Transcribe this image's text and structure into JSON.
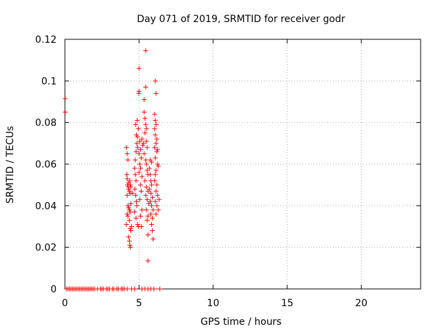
{
  "chart_data": {
    "type": "scatter",
    "title": "Day 071 of 2019, SRMTID for receiver godr",
    "xlabel": "GPS time / hours",
    "ylabel": "SRMTID / TECUs",
    "xlim": [
      0,
      24
    ],
    "ylim": [
      0,
      0.12
    ],
    "xticks": [
      0,
      5,
      10,
      15,
      20
    ],
    "xtick_labels": [
      "0",
      "5",
      "10",
      "15",
      "20"
    ],
    "yticks": [
      0,
      0.02,
      0.04,
      0.06,
      0.08,
      0.1,
      0.12
    ],
    "ytick_labels": [
      "0",
      "0.02",
      "0.04",
      "0.06",
      "0.08",
      "0.1",
      "0.12"
    ],
    "grid": true,
    "marker": "plus",
    "color": "#ff0000",
    "series": [
      {
        "points": [
          [
            0.02,
            0.0915
          ],
          [
            0.02,
            0.085
          ],
          [
            0.1,
            0
          ],
          [
            0.2,
            0
          ],
          [
            0.3,
            0
          ],
          [
            0.4,
            0
          ],
          [
            0.5,
            0
          ],
          [
            0.6,
            0
          ],
          [
            0.7,
            0
          ],
          [
            0.8,
            0
          ],
          [
            0.9,
            0
          ],
          [
            1.0,
            0
          ],
          [
            1.1,
            0
          ],
          [
            1.2,
            0
          ],
          [
            1.3,
            0
          ],
          [
            1.4,
            0
          ],
          [
            1.5,
            0
          ],
          [
            1.6,
            0
          ],
          [
            1.7,
            0
          ],
          [
            1.8,
            0
          ],
          [
            1.9,
            0
          ],
          [
            2.0,
            0
          ],
          [
            2.2,
            0
          ],
          [
            2.4,
            0
          ],
          [
            2.5,
            0
          ],
          [
            2.6,
            0
          ],
          [
            2.8,
            0
          ],
          [
            2.9,
            0
          ],
          [
            3.0,
            0
          ],
          [
            3.2,
            0
          ],
          [
            3.3,
            0
          ],
          [
            3.5,
            0
          ],
          [
            3.6,
            0
          ],
          [
            3.8,
            0
          ],
          [
            3.9,
            0
          ],
          [
            4.0,
            0
          ],
          [
            4.2,
            0
          ],
          [
            4.5,
            0
          ],
          [
            4.7,
            0
          ],
          [
            5.2,
            0
          ],
          [
            5.4,
            0
          ],
          [
            5.6,
            0
          ],
          [
            5.8,
            0
          ],
          [
            6.0,
            0
          ],
          [
            6.4,
            0
          ],
          [
            4.15,
            0.068
          ],
          [
            4.2,
            0.065
          ],
          [
            4.25,
            0.062
          ],
          [
            4.18,
            0.055
          ],
          [
            4.2,
            0.053
          ],
          [
            4.22,
            0.05
          ],
          [
            4.28,
            0.049
          ],
          [
            4.3,
            0.048
          ],
          [
            4.35,
            0.047
          ],
          [
            4.4,
            0.046
          ],
          [
            4.3,
            0.051
          ],
          [
            4.38,
            0.052
          ],
          [
            4.4,
            0.05
          ],
          [
            4.45,
            0.049
          ],
          [
            4.2,
            0.045
          ],
          [
            4.25,
            0.04
          ],
          [
            4.3,
            0.039
          ],
          [
            4.35,
            0.038
          ],
          [
            4.4,
            0.037
          ],
          [
            4.45,
            0.041
          ],
          [
            4.2,
            0.036
          ],
          [
            4.25,
            0.035
          ],
          [
            4.35,
            0.033
          ],
          [
            4.15,
            0.031
          ],
          [
            4.4,
            0.029
          ],
          [
            4.45,
            0.028
          ],
          [
            4.3,
            0.025
          ],
          [
            4.35,
            0.023
          ],
          [
            4.38,
            0.021
          ],
          [
            4.42,
            0.02
          ],
          [
            4.5,
            0.03
          ],
          [
            4.55,
            0.046
          ],
          [
            4.7,
            0.058
          ],
          [
            4.75,
            0.055
          ],
          [
            4.8,
            0.052
          ],
          [
            4.72,
            0.048
          ],
          [
            4.78,
            0.045
          ],
          [
            4.82,
            0.042
          ],
          [
            4.85,
            0.04
          ],
          [
            4.7,
            0.037
          ],
          [
            4.8,
            0.034
          ],
          [
            4.9,
            0.031
          ],
          [
            4.95,
            0.03
          ],
          [
            4.75,
            0.062
          ],
          [
            4.8,
            0.066
          ],
          [
            4.85,
            0.07
          ],
          [
            4.9,
            0.073
          ],
          [
            4.95,
            0.077
          ],
          [
            4.78,
            0.079
          ],
          [
            4.88,
            0.081
          ],
          [
            4.82,
            0.074
          ],
          [
            4.9,
            0.068
          ],
          [
            5.0,
            0.106
          ],
          [
            5.0,
            0.095
          ],
          [
            4.98,
            0.094
          ],
          [
            5.05,
            0.071
          ],
          [
            5.1,
            0.067
          ],
          [
            5.15,
            0.063
          ],
          [
            5.05,
            0.06
          ],
          [
            5.1,
            0.058
          ],
          [
            5.0,
            0.056
          ],
          [
            5.2,
            0.054
          ],
          [
            5.1,
            0.05
          ],
          [
            5.15,
            0.047
          ],
          [
            5.05,
            0.043
          ],
          [
            5.2,
            0.038
          ],
          [
            5.1,
            0.035
          ],
          [
            5.15,
            0.03
          ],
          [
            5.2,
            0.072
          ],
          [
            5.25,
            0.069
          ],
          [
            5.0,
            0.065
          ],
          [
            5.3,
            0.07
          ],
          [
            5.35,
            0.085
          ],
          [
            5.4,
            0.082
          ],
          [
            5.35,
            0.091
          ],
          [
            5.45,
            0.079
          ],
          [
            5.5,
            0.077
          ],
          [
            5.45,
            0.097
          ],
          [
            5.4,
            0.075
          ],
          [
            5.5,
            0.071
          ],
          [
            5.55,
            0.068
          ],
          [
            5.35,
            0.065
          ],
          [
            5.45,
            0.062
          ],
          [
            5.5,
            0.06
          ],
          [
            5.55,
            0.057
          ],
          [
            5.6,
            0.055
          ],
          [
            5.4,
            0.052
          ],
          [
            5.5,
            0.049
          ],
          [
            5.6,
            0.047
          ],
          [
            5.45,
            0.045
          ],
          [
            5.55,
            0.043
          ],
          [
            5.65,
            0.041
          ],
          [
            5.5,
            0.038
          ],
          [
            5.6,
            0.035
          ],
          [
            5.55,
            0.033
          ],
          [
            5.6,
            0.026
          ],
          [
            5.6,
            0.0135
          ],
          [
            5.45,
            0.1145
          ],
          [
            5.7,
            0.058
          ],
          [
            5.75,
            0.055
          ],
          [
            5.8,
            0.052
          ],
          [
            5.85,
            0.05
          ],
          [
            5.7,
            0.048
          ],
          [
            5.8,
            0.046
          ],
          [
            5.9,
            0.044
          ],
          [
            5.75,
            0.042
          ],
          [
            5.85,
            0.04
          ],
          [
            5.95,
            0.038
          ],
          [
            5.8,
            0.036
          ],
          [
            5.9,
            0.034
          ],
          [
            5.85,
            0.031
          ],
          [
            5.9,
            0.028
          ],
          [
            5.95,
            0.024
          ],
          [
            5.75,
            0.062
          ],
          [
            5.85,
            0.061
          ],
          [
            6.05,
            0.084
          ],
          [
            6.1,
            0.081
          ],
          [
            6.15,
            0.079
          ],
          [
            6.05,
            0.077
          ],
          [
            6.1,
            0.074
          ],
          [
            6.2,
            0.072
          ],
          [
            6.15,
            0.07
          ],
          [
            6.05,
            0.068
          ],
          [
            6.2,
            0.066
          ],
          [
            6.1,
            0.063
          ],
          [
            6.25,
            0.06
          ],
          [
            6.15,
            0.057
          ],
          [
            6.1,
            0.055
          ],
          [
            6.05,
            0.052
          ],
          [
            6.2,
            0.05
          ],
          [
            6.15,
            0.047
          ],
          [
            6.25,
            0.045
          ],
          [
            6.1,
            0.042
          ],
          [
            6.2,
            0.04
          ],
          [
            6.3,
            0.038
          ],
          [
            6.15,
            0.036
          ],
          [
            6.1,
            0.1
          ],
          [
            6.15,
            0.094
          ],
          [
            6.35,
            0.043
          ],
          [
            6.25,
            0.067
          ],
          [
            6.3,
            0.059
          ]
        ]
      }
    ]
  }
}
